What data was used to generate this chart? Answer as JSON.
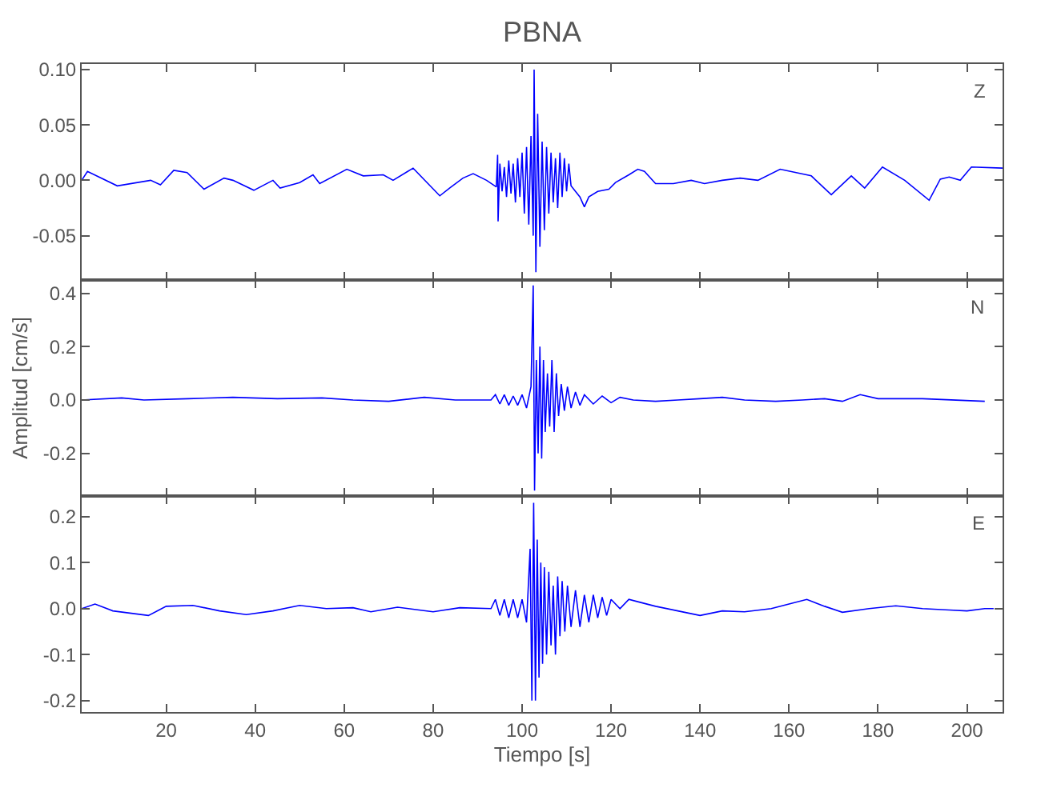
{
  "chart_data": [
    {
      "type": "line",
      "title": "PBNA",
      "annotations": [
        "Z"
      ],
      "xlim": [
        1,
        208
      ],
      "ylim": [
        -0.09,
        0.105
      ],
      "tick_labels": "y",
      "xticks": [
        20,
        40,
        60,
        80,
        100,
        120,
        140,
        160,
        180,
        200
      ],
      "yticks": [
        {
          "value": -0.05,
          "label": "-0.05"
        },
        {
          "value": 0,
          "label": "0.00"
        },
        0.05,
        {
          "value": 0.1,
          "label": "0.10"
        }
      ],
      "x": [
        1,
        2.3,
        9,
        16.5,
        18.7,
        21.7,
        24.7,
        28.5,
        33,
        35,
        39.7,
        44,
        45.6,
        50,
        53,
        54.5,
        60.6,
        64.3,
        68.8,
        71,
        75.5,
        81.5,
        83.7,
        86.7,
        89,
        92,
        94.2,
        94.5,
        94.6,
        95,
        95.5,
        96,
        96.5,
        97,
        97.5,
        98,
        98.5,
        99,
        99.5,
        100,
        100.5,
        101,
        101.5,
        102,
        102.5,
        102.7,
        103.1,
        103.5,
        104,
        104.5,
        105,
        105.5,
        106,
        106.5,
        107,
        107.5,
        108,
        108.5,
        109,
        109.5,
        110,
        110.5,
        111,
        112,
        113,
        114,
        115,
        117,
        119.5,
        121,
        124,
        126,
        127.5,
        130,
        134,
        138,
        141,
        145,
        149,
        153,
        158,
        165,
        169.5,
        174,
        177,
        181,
        186,
        191.5,
        194,
        196,
        198.5,
        201,
        208
      ],
      "series": [
        {
          "color": "#0000ff",
          "values": [
            0,
            0.008,
            -0.005,
            0,
            -0.004,
            0.009,
            0.007,
            -0.008,
            0.002,
            0,
            -0.009,
            0,
            -0.007,
            -0.002,
            0.005,
            -0.003,
            0.01,
            0.004,
            0.005,
            0,
            0.011,
            -0.014,
            -0.007,
            0.002,
            0.006,
            0,
            -0.006,
            0.023,
            -0.037,
            0.015,
            -0.01,
            0.012,
            -0.015,
            0.018,
            -0.012,
            0.015,
            -0.02,
            0.02,
            -0.015,
            0.025,
            -0.03,
            0.03,
            -0.04,
            0.04,
            -0.05,
            0.1,
            -0.083,
            0.06,
            -0.06,
            0.035,
            -0.045,
            0.03,
            -0.03,
            0.025,
            -0.02,
            0.02,
            -0.025,
            0.025,
            -0.015,
            0.02,
            -0.01,
            0.015,
            -0.005,
            -0.01,
            -0.015,
            -0.024,
            -0.015,
            -0.01,
            -0.008,
            -0.002,
            0.005,
            0.01,
            0.008,
            -0.003,
            -0.003,
            0,
            -0.003,
            0,
            0.002,
            0,
            0.01,
            0.004,
            -0.013,
            0.004,
            -0.007,
            0.012,
            0,
            -0.018,
            0.001,
            0.003,
            0,
            0.012,
            0.011
          ]
        }
      ]
    },
    {
      "type": "line",
      "ylabel": "Amplitud [cm/s]",
      "annotations": [
        "N"
      ],
      "xlim": [
        1,
        208
      ],
      "ylim": [
        -0.36,
        0.45
      ],
      "tick_labels": "y",
      "xticks": [
        20,
        40,
        60,
        80,
        100,
        120,
        140,
        160,
        180,
        200
      ],
      "yticks": [
        -0.2,
        {
          "value": 0,
          "label": "0.0"
        },
        0.2,
        0.4
      ],
      "x": [
        1,
        10,
        15,
        25,
        35,
        45,
        55,
        62,
        70,
        78,
        85,
        93,
        94,
        95,
        96,
        97,
        98,
        99,
        100,
        101,
        102,
        102.5,
        102.8,
        103.2,
        103.6,
        104,
        104.4,
        104.8,
        105.2,
        105.7,
        106.2,
        106.7,
        107.2,
        107.7,
        108.2,
        108.8,
        109.5,
        110.2,
        111,
        112,
        113,
        114,
        116,
        118,
        120,
        122,
        125,
        130,
        135,
        140,
        145,
        150,
        157,
        163,
        168,
        172,
        176,
        180,
        190,
        204
      ],
      "series": [
        {
          "color": "#0000ff",
          "values": [
            0,
            0.008,
            0,
            0.005,
            0.01,
            0.005,
            0.008,
            0,
            -0.005,
            0.01,
            0,
            0,
            0.02,
            -0.015,
            0.02,
            -0.02,
            0.015,
            -0.02,
            0.02,
            -0.03,
            0.05,
            0.43,
            -0.34,
            0.15,
            -0.2,
            0.2,
            -0.22,
            0.15,
            -0.12,
            0.1,
            -0.1,
            0.15,
            -0.12,
            0.1,
            -0.06,
            0.06,
            -0.04,
            0.05,
            -0.03,
            0.03,
            -0.02,
            0.02,
            -0.015,
            0.015,
            -0.01,
            0.01,
            0,
            -0.005,
            0,
            0.005,
            0.01,
            0,
            -0.005,
            0,
            0.005,
            -0.005,
            0.02,
            0.005,
            0.005,
            -0.005
          ]
        }
      ]
    },
    {
      "type": "line",
      "xlabel": "Tiempo [s]",
      "annotations": [
        "E"
      ],
      "xlim": [
        1,
        208
      ],
      "ylim": [
        -0.225,
        0.245
      ],
      "xticks": [
        20,
        40,
        60,
        80,
        100,
        120,
        140,
        160,
        180,
        200
      ],
      "yticks": [
        -0.2,
        -0.1,
        {
          "value": 0,
          "label": "0.0"
        },
        0.1,
        0.2
      ],
      "x": [
        1,
        4,
        8,
        16,
        20,
        26,
        32,
        38,
        44,
        50,
        56,
        62,
        66,
        72,
        80,
        86,
        93,
        94,
        95,
        96,
        97,
        98,
        99,
        100,
        101,
        101.8,
        102.2,
        102.6,
        103,
        103.4,
        103.8,
        104.2,
        104.6,
        105,
        105.5,
        106,
        106.5,
        107,
        107.5,
        108,
        108.5,
        109,
        109.6,
        110.2,
        111,
        112,
        113,
        114,
        115,
        116,
        117,
        118,
        119,
        120,
        122,
        124,
        126,
        130,
        135,
        140,
        145,
        150,
        156,
        160,
        164,
        168,
        172,
        178,
        184,
        190,
        196,
        200,
        204,
        206
      ],
      "series": [
        {
          "color": "#0000ff",
          "values": [
            0,
            0.01,
            -0.005,
            -0.015,
            0.005,
            0.007,
            -0.005,
            -0.013,
            -0.005,
            0.007,
            0,
            0.002,
            -0.007,
            0.003,
            -0.007,
            0.002,
            0,
            0.02,
            -0.015,
            0.02,
            -0.02,
            0.02,
            -0.02,
            0.02,
            -0.03,
            0.13,
            -0.2,
            0.23,
            -0.2,
            0.15,
            -0.15,
            0.1,
            -0.12,
            0.09,
            -0.1,
            0.08,
            -0.08,
            0.05,
            -0.1,
            0.07,
            -0.06,
            0.06,
            -0.05,
            0.05,
            -0.04,
            0.04,
            -0.04,
            0.03,
            -0.03,
            0.03,
            -0.02,
            0.025,
            -0.015,
            0.02,
            0,
            0.02,
            0.015,
            0.005,
            -0.005,
            -0.015,
            -0.005,
            -0.007,
            0,
            0.01,
            0.02,
            0.005,
            -0.008,
            0,
            0.006,
            0,
            -0.003,
            -0.005,
            0,
            0
          ]
        }
      ]
    }
  ]
}
